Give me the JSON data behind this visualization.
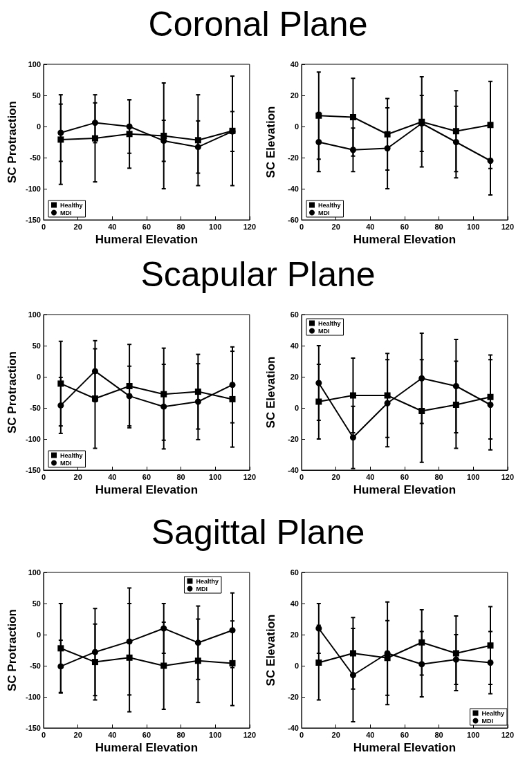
{
  "chart_data": [
    {
      "type": "line",
      "title": "Coronal Plane",
      "xlabel": "Humeral Elevation",
      "ylabel": "SC Protraction",
      "x": [
        10,
        30,
        50,
        70,
        90,
        110
      ],
      "xlim": [
        0,
        120
      ],
      "xticks": [
        0,
        20,
        40,
        60,
        80,
        100,
        120
      ],
      "ylim": [
        -150,
        100
      ],
      "yticks": [
        -150,
        -100,
        -50,
        0,
        50,
        100
      ],
      "legend": "bottom left",
      "series": [
        {
          "name": "Healthy",
          "color": "#000000",
          "marker": "square",
          "values": [
            -21,
            -19,
            -12,
            -15,
            -22,
            -7
          ],
          "errors": [
            72,
            70,
            55,
            85,
            73,
            88
          ]
        },
        {
          "name": "MDI",
          "color": "#000000",
          "marker": "circle",
          "values": [
            -10,
            6,
            0,
            -23,
            -33,
            -8
          ],
          "errors": [
            46,
            32,
            43,
            33,
            42,
            32
          ]
        }
      ]
    },
    {
      "type": "line",
      "xlabel": "Humeral Elevation",
      "ylabel": "SC Elevation",
      "x": [
        10,
        30,
        50,
        70,
        90,
        110
      ],
      "xlim": [
        0,
        120
      ],
      "xticks": [
        0,
        20,
        40,
        60,
        80,
        100,
        120
      ],
      "ylim": [
        -60,
        40
      ],
      "yticks": [
        -60,
        -40,
        -20,
        0,
        20,
        40
      ],
      "legend": "bottom left",
      "series": [
        {
          "name": "Healthy",
          "color": "#000000",
          "marker": "square",
          "values": [
            7,
            6,
            -5,
            3,
            -3,
            1
          ],
          "errors": [
            28,
            25,
            23,
            29,
            26,
            28
          ]
        },
        {
          "name": "MDI",
          "color": "#000000",
          "marker": "circle",
          "values": [
            -10,
            -15,
            -14,
            2,
            -10,
            -22
          ],
          "errors": [
            19,
            14,
            26,
            18,
            23,
            22
          ]
        }
      ]
    },
    {
      "type": "line",
      "title": "Scapular Plane",
      "xlabel": "Humeral Elevation",
      "ylabel": "SC Protraction",
      "x": [
        10,
        30,
        50,
        70,
        90,
        110
      ],
      "xlim": [
        0,
        120
      ],
      "xticks": [
        0,
        20,
        40,
        60,
        80,
        100,
        120
      ],
      "ylim": [
        -150,
        100
      ],
      "yticks": [
        -150,
        -100,
        -50,
        0,
        50,
        100
      ],
      "legend": "bottom left",
      "series": [
        {
          "name": "Healthy",
          "color": "#000000",
          "marker": "square",
          "values": [
            -11,
            -35,
            -15,
            -28,
            -24,
            -36
          ],
          "errors": [
            68,
            80,
            67,
            74,
            60,
            77
          ]
        },
        {
          "name": "MDI",
          "color": "#000000",
          "marker": "circle",
          "values": [
            -46,
            9,
            -31,
            -48,
            -40,
            -13
          ],
          "errors": [
            45,
            49,
            48,
            68,
            61,
            61
          ]
        }
      ]
    },
    {
      "type": "line",
      "xlabel": "Humeral Elevation",
      "ylabel": "SC Elevation",
      "x": [
        10,
        30,
        50,
        70,
        90,
        110
      ],
      "xlim": [
        0,
        120
      ],
      "xticks": [
        0,
        20,
        40,
        60,
        80,
        100,
        120
      ],
      "ylim": [
        -40,
        60
      ],
      "yticks": [
        -40,
        -20,
        0,
        20,
        40,
        60
      ],
      "legend": "top left",
      "series": [
        {
          "name": "Healthy",
          "color": "#000000",
          "marker": "square",
          "values": [
            4,
            8,
            8,
            -2,
            2,
            7
          ],
          "errors": [
            24,
            24,
            27,
            33,
            28,
            27
          ]
        },
        {
          "name": "MDI",
          "color": "#000000",
          "marker": "circle",
          "values": [
            16,
            -19,
            3,
            19,
            14,
            2
          ],
          "errors": [
            24,
            20,
            28,
            29,
            30,
            29
          ]
        }
      ]
    },
    {
      "type": "line",
      "title": "Sagittal Plane",
      "xlabel": "Humeral Elevation",
      "ylabel": "SC Protraction",
      "x": [
        10,
        30,
        50,
        70,
        90,
        110
      ],
      "xlim": [
        0,
        120
      ],
      "xticks": [
        0,
        20,
        40,
        60,
        80,
        100,
        120
      ],
      "ylim": [
        -150,
        100
      ],
      "yticks": [
        -150,
        -100,
        -50,
        0,
        50,
        100
      ],
      "legend": "top right",
      "series": [
        {
          "name": "Healthy",
          "color": "#000000",
          "marker": "square",
          "values": [
            -22,
            -44,
            -37,
            -50,
            -42,
            -46
          ],
          "errors": [
            72,
            61,
            87,
            70,
            67,
            68
          ]
        },
        {
          "name": "MDI",
          "color": "#000000",
          "marker": "circle",
          "values": [
            -51,
            -28,
            -11,
            10,
            -13,
            7
          ],
          "errors": [
            42,
            70,
            86,
            40,
            59,
            60
          ]
        }
      ]
    },
    {
      "type": "line",
      "xlabel": "Humeral Elevation",
      "ylabel": "SC Elevation",
      "x": [
        10,
        30,
        50,
        70,
        90,
        110
      ],
      "xlim": [
        0,
        120
      ],
      "xticks": [
        0,
        20,
        40,
        60,
        80,
        100,
        120
      ],
      "ylim": [
        -40,
        60
      ],
      "yticks": [
        -40,
        -20,
        0,
        20,
        40,
        60
      ],
      "legend": "bottom right",
      "series": [
        {
          "name": "Healthy",
          "color": "#000000",
          "marker": "square",
          "values": [
            2,
            8,
            5,
            15,
            8,
            13
          ],
          "errors": [
            24,
            23,
            24,
            21,
            24,
            25
          ]
        },
        {
          "name": "MDI",
          "color": "#000000",
          "marker": "circle",
          "values": [
            24,
            -6,
            8,
            1,
            4,
            2
          ],
          "errors": [
            16,
            30,
            33,
            21,
            16,
            20
          ]
        }
      ]
    }
  ]
}
